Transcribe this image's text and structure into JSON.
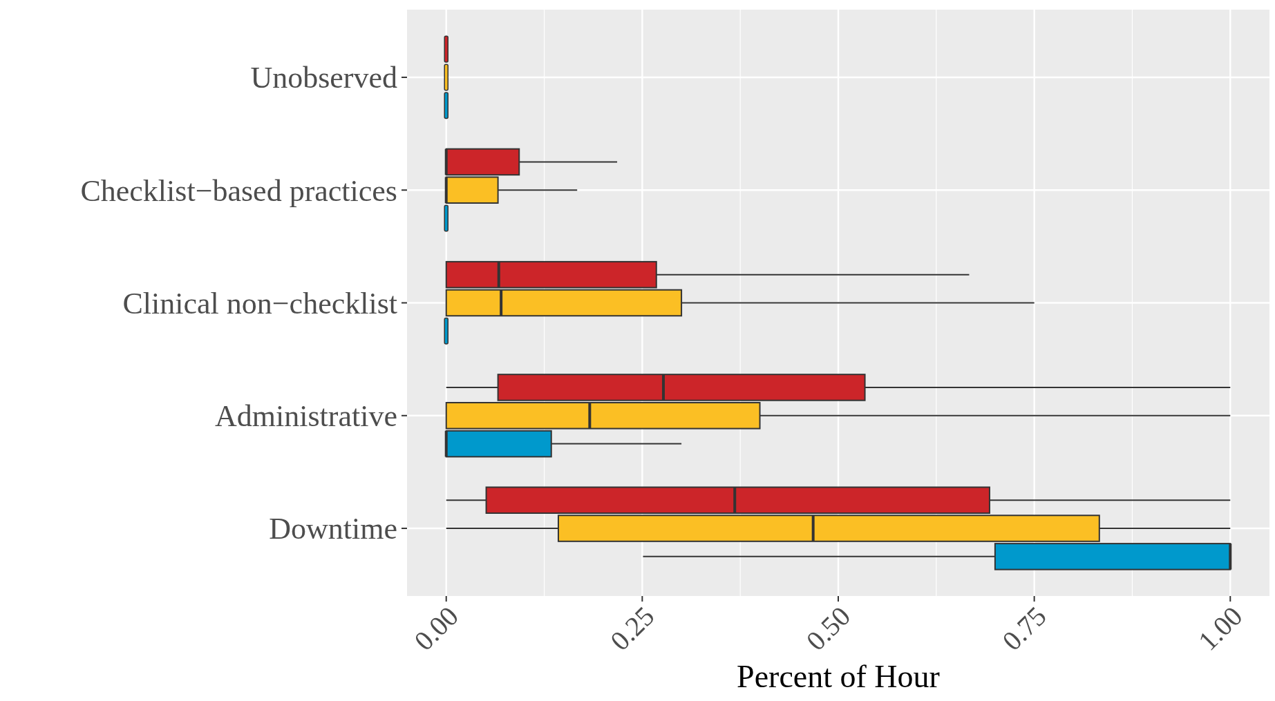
{
  "chart_data": {
    "type": "box",
    "orientation": "horizontal",
    "xlabel": "Percent of Hour",
    "categories": [
      "Unobserved",
      "Checklist−based practices",
      "Clinical non−checklist",
      "Administrative",
      "Downtime"
    ],
    "xlim": [
      -0.05,
      1.05
    ],
    "xticks": [
      {
        "value": 0,
        "label": "0.00"
      },
      {
        "value": 0.25,
        "label": "0.25"
      },
      {
        "value": 0.5,
        "label": "0.50"
      },
      {
        "value": 0.75,
        "label": "0.75"
      },
      {
        "value": 1,
        "label": "1.00"
      }
    ],
    "grid": true,
    "series": [
      {
        "color": "#cc2529",
        "boxes": [
          {
            "low": 0,
            "q1": 0,
            "median": 0,
            "q3": 0,
            "high": 0
          },
          {
            "low": 0,
            "q1": 0,
            "median": 0,
            "q3": 0.093,
            "high": 0.218
          },
          {
            "low": 0,
            "q1": 0,
            "median": 0.067,
            "q3": 0.268,
            "high": 0.667
          },
          {
            "low": 0,
            "q1": 0.066,
            "median": 0.277,
            "q3": 0.534,
            "high": 1
          },
          {
            "low": 0,
            "q1": 0.051,
            "median": 0.368,
            "q3": 0.693,
            "high": 1
          }
        ]
      },
      {
        "color": "#fbbf24",
        "boxes": [
          {
            "low": 0,
            "q1": 0,
            "median": 0,
            "q3": 0,
            "high": 0
          },
          {
            "low": 0,
            "q1": 0,
            "median": 0,
            "q3": 0.066,
            "high": 0.167
          },
          {
            "low": 0,
            "q1": 0,
            "median": 0.07,
            "q3": 0.3,
            "high": 0.75
          },
          {
            "low": 0,
            "q1": 0,
            "median": 0.183,
            "q3": 0.4,
            "high": 1
          },
          {
            "low": 0,
            "q1": 0.143,
            "median": 0.468,
            "q3": 0.833,
            "high": 1
          }
        ]
      },
      {
        "color": "#0099cc",
        "boxes": [
          {
            "low": 0,
            "q1": 0,
            "median": 0,
            "q3": 0,
            "high": 0
          },
          {
            "low": 0,
            "q1": 0,
            "median": 0,
            "q3": 0,
            "high": 0
          },
          {
            "low": 0,
            "q1": 0,
            "median": 0,
            "q3": 0,
            "high": 0
          },
          {
            "low": 0,
            "q1": 0,
            "median": 0,
            "q3": 0.134,
            "high": 0.3
          },
          {
            "low": 0.251,
            "q1": 0.7,
            "median": 1,
            "q3": 1,
            "high": 1
          }
        ]
      }
    ]
  }
}
